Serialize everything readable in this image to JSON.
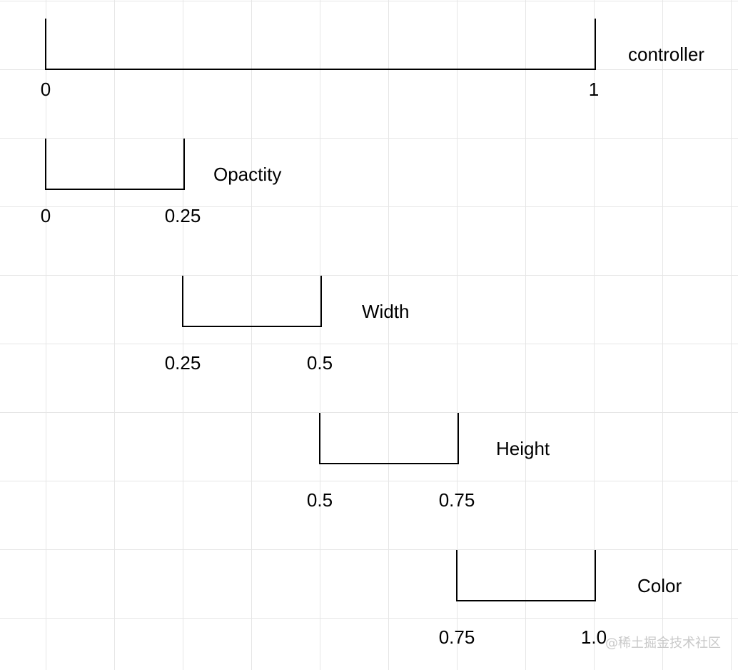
{
  "rows": [
    {
      "label": "controller",
      "start": 0,
      "end": 1,
      "start_label": "0",
      "end_label": "1"
    },
    {
      "label": "Opactity",
      "start": 0,
      "end": 0.25,
      "start_label": "0",
      "end_label": "0.25"
    },
    {
      "label": "Width",
      "start": 0.25,
      "end": 0.5,
      "start_label": "0.25",
      "end_label": "0.5"
    },
    {
      "label": "Height",
      "start": 0.5,
      "end": 0.75,
      "start_label": "0.5",
      "end_label": "0.75"
    },
    {
      "label": "Color",
      "start": 0.75,
      "end": 1.0,
      "start_label": "0.75",
      "end_label": "1.0"
    }
  ],
  "watermark": "@稀土掘金技术社区",
  "colors": {
    "line": "#000000",
    "grid": "#e6e6e6",
    "background": "#ffffff",
    "watermark": "#c9c9c9"
  }
}
